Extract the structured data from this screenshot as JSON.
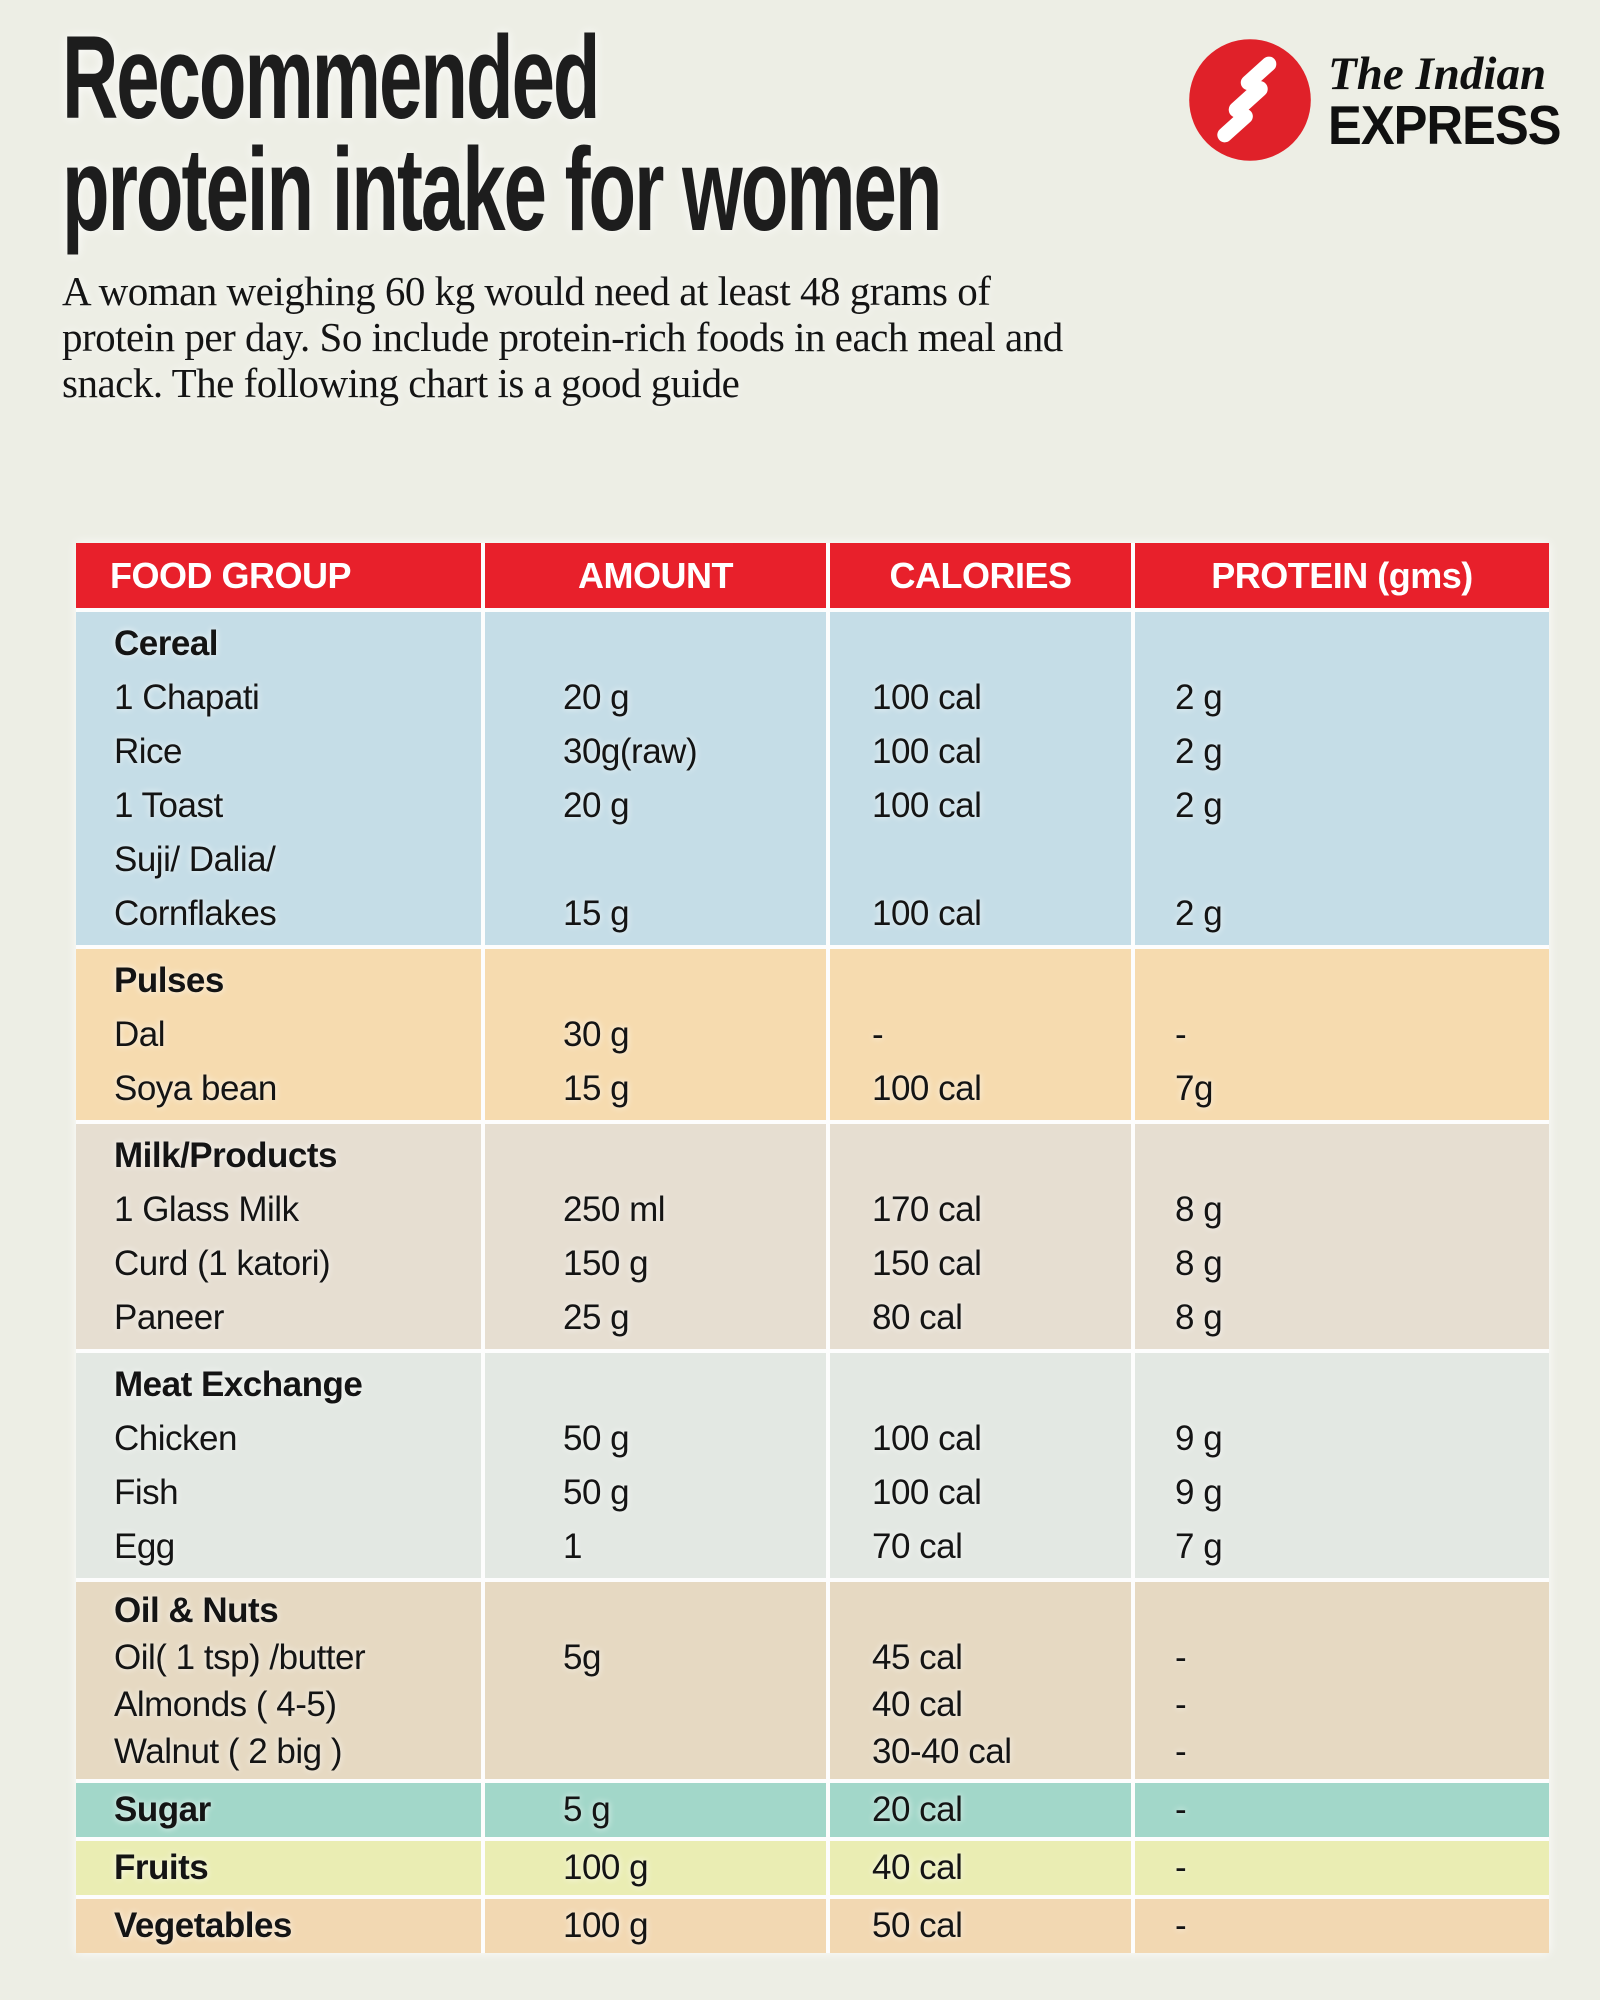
{
  "page": {
    "background": "#edeee5"
  },
  "header": {
    "title_lines": [
      "Recommended",
      "protein intake for women"
    ],
    "subtitle_lines": [
      "A woman weighing 60 kg would need at least 48 grams of",
      "protein per day. So include protein-rich foods in each meal and",
      "snack. The following chart is a good guide"
    ],
    "logo": {
      "publication_top": "The Indian",
      "publication_bottom": "EXPRESS",
      "mark_color": "#e02129"
    }
  },
  "table_header": {
    "bg": "#e8202b",
    "columns": [
      "FOOD GROUP",
      "AMOUNT",
      "CALORIES",
      "PROTEIN (gms)"
    ]
  },
  "chart_data": {
    "type": "table",
    "title": "Recommended protein intake for women",
    "columns": [
      "FOOD GROUP",
      "AMOUNT",
      "CALORIES",
      "PROTEIN (gms)"
    ],
    "sections": [
      {
        "bg": "#c5dde7",
        "rows": [
          {
            "food": "Cereal",
            "header": true,
            "amount": "",
            "calories": "",
            "protein": ""
          },
          {
            "food": "1 Chapati",
            "amount": "20 g",
            "calories": "100 cal",
            "protein": "2 g"
          },
          {
            "food": "Rice",
            "amount": "30g(raw)",
            "calories": "100 cal",
            "protein": "2 g"
          },
          {
            "food": "1 Toast",
            "amount": "20 g",
            "calories": "100 cal",
            "protein": "2 g"
          },
          {
            "food": "Suji/ Dalia/",
            "amount": "",
            "calories": "",
            "protein": ""
          },
          {
            "food": "Cornflakes",
            "amount": "15 g",
            "calories": "100 cal",
            "protein": "2 g"
          }
        ]
      },
      {
        "bg": "#f6dbaf",
        "rows": [
          {
            "food": "Pulses",
            "header": true,
            "amount": "",
            "calories": "",
            "protein": ""
          },
          {
            "food": "Dal",
            "amount": "30 g",
            "calories": "-",
            "protein": "-"
          },
          {
            "food": "Soya bean",
            "amount": "15 g",
            "calories": "100 cal",
            "protein": "7g"
          }
        ]
      },
      {
        "bg": "#e6ded1",
        "rows": [
          {
            "food": "Milk/Products",
            "header": true,
            "amount": "",
            "calories": "",
            "protein": ""
          },
          {
            "food": "1 Glass Milk",
            "amount": "250 ml",
            "calories": "170 cal",
            "protein": "8 g"
          },
          {
            "food": "Curd (1 katori)",
            "amount": "150 g",
            "calories": "150 cal",
            "protein": "8 g"
          },
          {
            "food": "Paneer",
            "amount": "25 g",
            "calories": "80 cal",
            "protein": "8 g"
          }
        ]
      },
      {
        "bg": "#e3e8e3",
        "rows": [
          {
            "food": "Meat Exchange",
            "header": true,
            "amount": "",
            "calories": "",
            "protein": ""
          },
          {
            "food": "Chicken",
            "amount": "50 g",
            "calories": "100 cal",
            "protein": "9 g"
          },
          {
            "food": "Fish",
            "amount": "50 g",
            "calories": "100 cal",
            "protein": "9 g"
          },
          {
            "food": "Egg",
            "amount": "1",
            "calories": "70 cal",
            "protein": "7 g"
          }
        ]
      },
      {
        "bg": "#e6d9c2",
        "rows": [
          {
            "food": "Oil & Nuts",
            "header": true,
            "amount": "",
            "calories": "",
            "protein": ""
          },
          {
            "food": "Oil( 1 tsp) /butter",
            "amount": "5g",
            "calories": "45 cal",
            "protein": "-"
          },
          {
            "food": "Almonds ( 4-5)",
            "amount": "",
            "calories": "40 cal",
            "protein": "-"
          },
          {
            "food": "Walnut ( 2 big )",
            "amount": "",
            "calories": "30-40 cal",
            "protein": "-"
          }
        ]
      },
      {
        "bg": "#a2d7c9",
        "rows": [
          {
            "food": "Sugar",
            "header": true,
            "amount": "5 g",
            "calories": "20 cal",
            "protein": "-"
          }
        ]
      },
      {
        "bg": "#eaedb3",
        "rows": [
          {
            "food": "Fruits",
            "header": true,
            "amount": "100 g",
            "calories": "40 cal",
            "protein": "-"
          }
        ]
      },
      {
        "bg": "#f2d8b2",
        "rows": [
          {
            "food": "Vegetables",
            "header": true,
            "amount": "100 g",
            "calories": "50 cal",
            "protein": "-"
          }
        ]
      }
    ]
  }
}
